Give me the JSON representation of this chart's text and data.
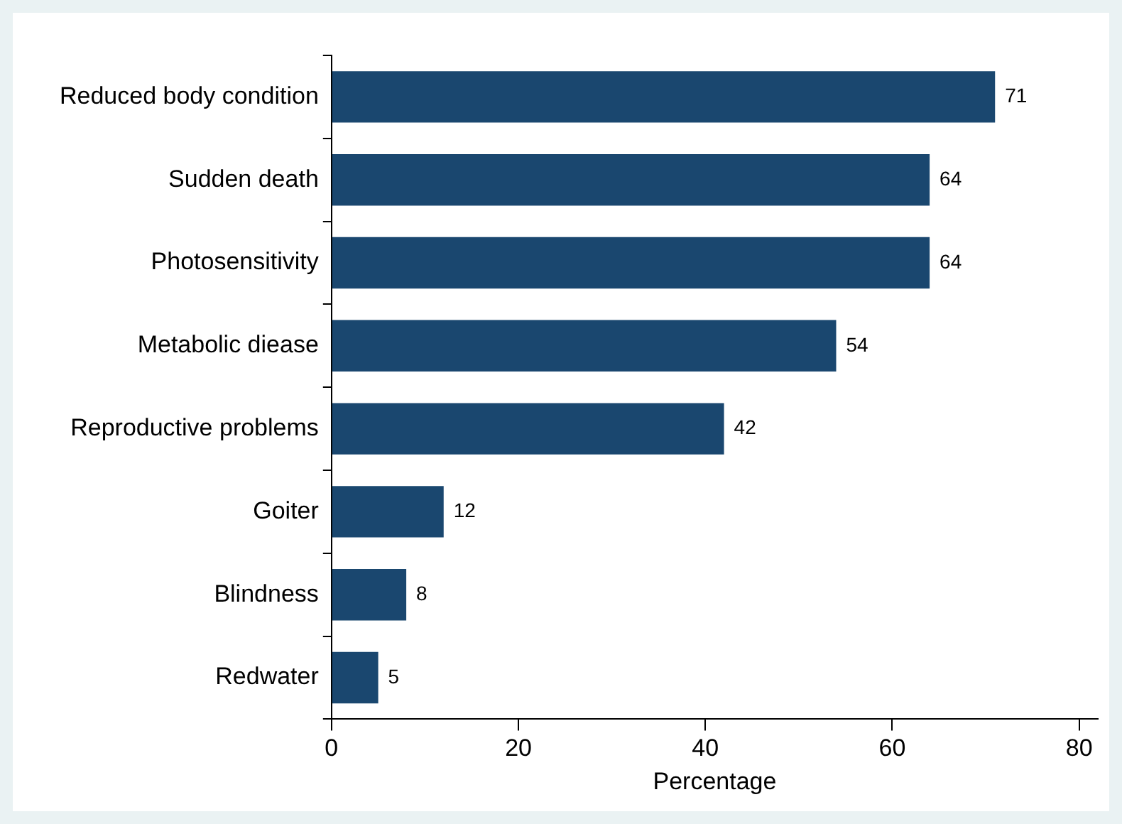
{
  "chart_data": {
    "type": "bar",
    "orientation": "horizontal",
    "xlabel": "Percentage",
    "categories": [
      "Reduced body condition",
      "Sudden death",
      "Photosensitivity",
      "Metabolic diease",
      "Reproductive problems",
      "Goiter",
      "Blindness",
      "Redwater"
    ],
    "values": [
      71,
      64,
      64,
      54,
      42,
      12,
      8,
      5
    ],
    "color": "#1a476f",
    "xlim": [
      0,
      82
    ],
    "xticks": [
      0,
      20,
      40,
      60,
      80
    ],
    "grid": false,
    "legend": false,
    "data_labels": true
  }
}
